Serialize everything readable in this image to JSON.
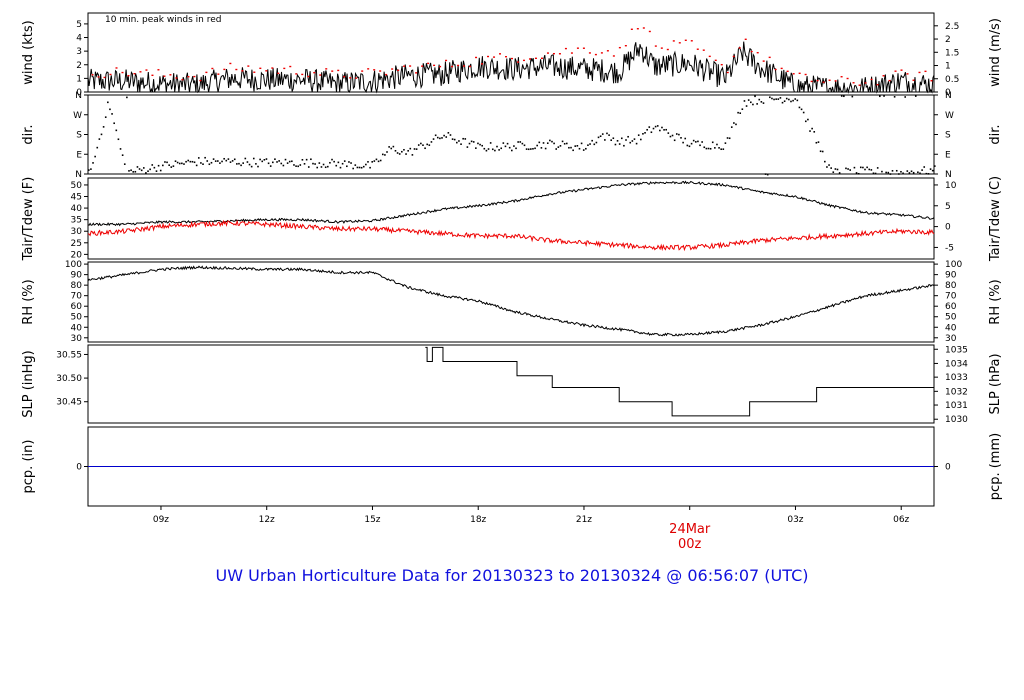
{
  "footer": {
    "title": "UW Urban Horticulture Data for 20130323  to  20130324 @ 06:56:07  (UTC)"
  },
  "colors": {
    "frame": "#000000",
    "series_black": "#000000",
    "series_red": "#ee0000",
    "precip_blue": "#0000cc",
    "date_label": "#dd0000",
    "footer": "#1111dd"
  },
  "chart_data": {
    "type": "line",
    "x_axis": {
      "ticks": [
        {
          "hour": 9,
          "label": "09z"
        },
        {
          "hour": 12,
          "label": "12z"
        },
        {
          "hour": 15,
          "label": "15z"
        },
        {
          "hour": 18,
          "label": "18z"
        },
        {
          "hour": 21,
          "label": "21z"
        },
        {
          "hour": 27,
          "label": "03z"
        },
        {
          "hour": 30,
          "label": "06z"
        }
      ],
      "date_label": "24Mar",
      "date_sublabel": "00z",
      "date_hour": 24,
      "range_hours": [
        6.93,
        30.93
      ]
    },
    "panels": [
      {
        "id": "wind",
        "left_label": "wind (kts)",
        "right_label": "wind (m/s)",
        "annotation": "10 min. peak winds in red",
        "ylim": [
          0,
          5.8
        ],
        "left_ticks": [
          "0",
          "1",
          "2",
          "3",
          "4",
          "5"
        ],
        "left_tick_values": [
          0,
          1,
          2,
          3,
          4,
          5
        ],
        "right_ticks": [
          "0",
          "0.5",
          "1",
          "1.5",
          "2",
          "2.5"
        ],
        "right_tick_values": [
          0,
          0.5,
          1,
          1.5,
          2,
          2.5
        ],
        "series": [
          {
            "name": "wind",
            "color": "#000000",
            "x": [
              6.93,
              8,
              9,
              10,
              11,
              12,
              13,
              14,
              15,
              16,
              17,
              18,
              19,
              20,
              21,
              22,
              22.6,
              23,
              24,
              25,
              25.5,
              26,
              27,
              28,
              29,
              30,
              30.93
            ],
            "y": [
              0.8,
              0.8,
              0.6,
              0.5,
              1.0,
              0.9,
              0.9,
              0.6,
              0.8,
              1.2,
              1.3,
              1.9,
              1.7,
              1.9,
              1.7,
              1.5,
              3.3,
              1.9,
              2.1,
              1.0,
              2.9,
              1.8,
              0.4,
              0.3,
              0.3,
              0.8,
              0.5
            ]
          },
          {
            "name": "peak",
            "color": "#ee0000",
            "x": [
              7,
              8,
              9,
              10,
              11,
              12,
              13,
              14,
              15,
              16,
              17,
              18,
              19,
              20,
              21,
              22,
              22.6,
              23,
              24,
              25,
              25.5,
              26,
              27,
              28,
              29,
              30,
              30.8
            ],
            "y": [
              1.5,
              1.5,
              1.3,
              1.2,
              1.8,
              1.7,
              1.6,
              1.3,
              1.4,
              1.8,
              2.0,
              2.4,
              2.6,
              2.9,
              3.2,
              3.0,
              5.5,
              3.3,
              3.5,
              1.6,
              4.0,
              2.6,
              1.1,
              0.8,
              0.8,
              1.3,
              1.2
            ]
          }
        ]
      },
      {
        "id": "dir",
        "left_label": "dir.",
        "right_label": "dir.",
        "ylim": [
          0,
          360
        ],
        "left_ticks": [
          "N",
          "E",
          "S",
          "W",
          "N"
        ],
        "left_tick_values": [
          0,
          90,
          180,
          270,
          360
        ],
        "right_ticks": [
          "N",
          "E",
          "S",
          "W",
          "N"
        ],
        "right_tick_values": [
          0,
          90,
          180,
          270,
          360
        ],
        "series": [
          {
            "name": "direction",
            "color": "#000000",
            "style": "dots",
            "x": [
              7,
              7.5,
              8,
              9,
              10,
              11,
              12,
              13,
              14,
              15,
              15.5,
              16,
              16.5,
              17,
              18,
              19,
              20,
              21,
              21.5,
              22,
              22.5,
              23,
              24,
              25,
              25.5,
              26,
              27,
              28,
              29,
              30,
              30.9
            ],
            "y": [
              20,
              330,
              10,
              40,
              60,
              60,
              55,
              55,
              50,
              40,
              120,
              100,
              140,
              180,
              125,
              130,
              140,
              125,
              180,
              150,
              160,
              220,
              140,
              135,
              330,
              345,
              350,
              10,
              15,
              10,
              20
            ]
          }
        ]
      },
      {
        "id": "temp",
        "left_label": "Tair/Tdew (F)",
        "right_label": "Tair/Tdew (C)",
        "ylim": [
          18,
          53
        ],
        "left_ticks": [
          "20",
          "25",
          "30",
          "35",
          "40",
          "45",
          "50"
        ],
        "left_tick_values": [
          20,
          25,
          30,
          35,
          40,
          45,
          50
        ],
        "right_ticks": [
          "-5",
          "0",
          "5",
          "10"
        ],
        "right_tick_values_f": [
          23,
          32,
          41,
          50
        ],
        "series": [
          {
            "name": "Tair",
            "color": "#000000",
            "x": [
              6.93,
              8,
              9,
              10,
              11,
              12,
              13,
              14,
              15,
              16,
              17,
              18,
              19,
              20,
              21,
              22,
              23,
              24,
              25,
              26,
              27,
              28,
              29,
              30,
              30.93
            ],
            "y": [
              33,
              33,
              34,
              34,
              34.5,
              35,
              35,
              34,
              34.5,
              37,
              39.5,
              41,
              43,
              46,
              48,
              50,
              51,
              51,
              50,
              47,
              45,
              41,
              38,
              37,
              35.5
            ]
          },
          {
            "name": "Tdew",
            "color": "#ee0000",
            "x": [
              6.93,
              8,
              9,
              10,
              11,
              12,
              13,
              14,
              15,
              16,
              17,
              18,
              19,
              20,
              21,
              22,
              23,
              24,
              25,
              26,
              27,
              28,
              29,
              30,
              30.93
            ],
            "y": [
              29,
              30,
              32,
              33,
              33.5,
              33,
              32,
              31,
              31,
              30,
              29,
              28,
              28,
              26,
              25,
              24,
              23,
              23,
              24,
              26,
              27,
              28,
              29,
              30,
              29.5
            ]
          }
        ]
      },
      {
        "id": "rh",
        "left_label": "RH (%)",
        "right_label": "RH (%)",
        "ylim": [
          26,
          102
        ],
        "left_ticks": [
          "30",
          "40",
          "50",
          "60",
          "70",
          "80",
          "90",
          "100"
        ],
        "left_tick_values": [
          30,
          40,
          50,
          60,
          70,
          80,
          90,
          100
        ],
        "right_ticks": [
          "30",
          "40",
          "50",
          "60",
          "70",
          "80",
          "90",
          "100"
        ],
        "right_tick_values": [
          30,
          40,
          50,
          60,
          70,
          80,
          90,
          100
        ],
        "series": [
          {
            "name": "RH",
            "color": "#000000",
            "x": [
              6.93,
              8,
              9,
              10,
              11,
              12,
              13,
              14,
              15,
              16,
              17,
              18,
              19,
              20,
              21,
              22,
              23,
              24,
              25,
              26,
              27,
              28,
              29,
              30,
              30.93
            ],
            "y": [
              85,
              90,
              95,
              97,
              96,
              95,
              95,
              92,
              92,
              78,
              70,
              65,
              55,
              48,
              42,
              38,
              33,
              33,
              36,
              42,
              50,
              60,
              70,
              75,
              80
            ]
          }
        ]
      },
      {
        "id": "slp",
        "left_label": "SLP (inHg)",
        "right_label": "SLP (hPa)",
        "ylim": [
          30.405,
          30.57
        ],
        "left_ticks": [
          "30.45",
          "30.50",
          "30.55"
        ],
        "left_tick_values": [
          30.45,
          30.5,
          30.55
        ],
        "right_ticks": [
          "1030",
          "1031",
          "1032",
          "1033",
          "1034",
          "1035"
        ],
        "right_tick_values_in": [
          30.413,
          30.443,
          30.472,
          30.502,
          30.531,
          30.561
        ],
        "series": [
          {
            "name": "SLP",
            "color": "#000000",
            "style": "step",
            "x": [
              16.5,
              16.55,
              16.6,
              16.7,
              16.75,
              17,
              18,
              19,
              19.1,
              20,
              20.1,
              21,
              21.5,
              22,
              23.5,
              24,
              25,
              25.7,
              26,
              27,
              27.6,
              28,
              30.93
            ],
            "y": [
              30.565,
              30.535,
              30.535,
              30.565,
              30.565,
              30.535,
              30.535,
              30.535,
              30.505,
              30.505,
              30.48,
              30.48,
              30.48,
              30.45,
              30.42,
              30.42,
              30.42,
              30.45,
              30.45,
              30.45,
              30.48,
              30.48,
              30.48
            ]
          }
        ]
      },
      {
        "id": "pcp",
        "left_label": "pcp. (in)",
        "right_label": "pcp. (mm)",
        "ylim": [
          -1,
          1
        ],
        "left_ticks": [
          "0"
        ],
        "left_tick_values": [
          0
        ],
        "right_ticks": [
          "0"
        ],
        "right_tick_values": [
          0
        ],
        "series": [
          {
            "name": "pcp",
            "color": "#0000cc",
            "x": [
              6.93,
              30.93
            ],
            "y": [
              0,
              0
            ]
          }
        ]
      }
    ]
  }
}
